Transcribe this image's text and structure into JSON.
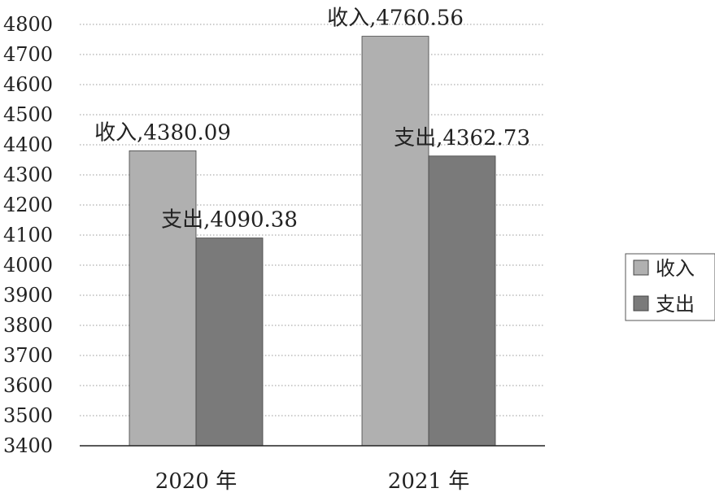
{
  "chart_data": {
    "type": "bar",
    "title": "",
    "xlabel": "",
    "ylabel": "",
    "categories": [
      "2020 年",
      "2021 年"
    ],
    "series": [
      {
        "name": "收入",
        "values": [
          4380.09,
          4760.56
        ],
        "color": "#b0b0b0"
      },
      {
        "name": "支出",
        "values": [
          4090.38,
          4362.73
        ],
        "color": "#7a7a7a"
      }
    ],
    "data_labels": [
      [
        "收入,4380.09",
        "收入,4760.56"
      ],
      [
        "支出,4090.38",
        "支出,4362.73"
      ]
    ],
    "ylim": [
      3400,
      4800
    ],
    "yticks": [
      3400,
      3500,
      3600,
      3700,
      3800,
      3900,
      4000,
      4100,
      4200,
      4300,
      4400,
      4500,
      4600,
      4700,
      4800
    ],
    "grid": true,
    "grid_style": "dotted",
    "legend_position": "right"
  }
}
